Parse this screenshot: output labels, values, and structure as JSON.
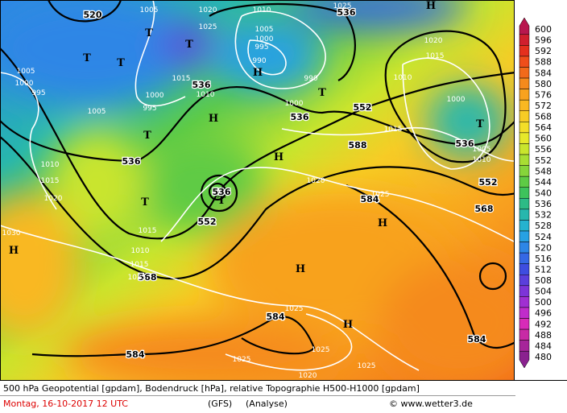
{
  "map": {
    "geopotential_labels": [
      "520",
      "536",
      "536",
      "552",
      "536",
      "536",
      "536",
      "552",
      "568",
      "584",
      "584",
      "588",
      "584",
      "568",
      "552",
      "536",
      "584"
    ],
    "pressure_labels": [
      "1005",
      "1020",
      "1025",
      "1010",
      "1005",
      "1000",
      "995",
      "990",
      "1015",
      "1000",
      "995",
      "1010",
      "1005",
      "1000",
      "1005",
      "995",
      "1010",
      "1015",
      "1020",
      "1030",
      "1015",
      "1010",
      "1015",
      "1025",
      "1025",
      "1025",
      "1025",
      "1025",
      "1020",
      "1000",
      "990",
      "1010",
      "1000",
      "1015",
      "1020",
      "1025",
      "1015",
      "1005",
      "1010",
      "1020",
      "1025"
    ],
    "centers": [
      "T",
      "T",
      "T",
      "H",
      "T",
      "T",
      "T",
      "T",
      "T",
      "T",
      "H",
      "H",
      "H",
      "H",
      "H",
      "H",
      "H"
    ]
  },
  "colorbar": {
    "levels": [
      600,
      596,
      592,
      588,
      584,
      580,
      576,
      572,
      568,
      564,
      560,
      556,
      552,
      548,
      544,
      540,
      536,
      532,
      528,
      524,
      520,
      516,
      512,
      508,
      504,
      500,
      496,
      492,
      488,
      484,
      480
    ],
    "colors": [
      "#b8174e",
      "#d01f2e",
      "#e4301d",
      "#ef4e1a",
      "#f26a1a",
      "#f58a1c",
      "#f8a21f",
      "#f9b822",
      "#f7cc25",
      "#f3de28",
      "#e6e82a",
      "#c9e52d",
      "#a8de33",
      "#86d53a",
      "#5ecb45",
      "#3ec35c",
      "#2dbb86",
      "#27b7ad",
      "#25b2cf",
      "#27a1e3",
      "#2d86e6",
      "#3568e5",
      "#3e4de0",
      "#5b3fdc",
      "#7d34d8",
      "#a02fd2",
      "#c02ccb",
      "#d72bb8",
      "#c82aa5",
      "#a6259a",
      "#8a218f"
    ]
  },
  "footer": {
    "description": "500 hPa Geopotential [gpdam], Bodendruck [hPa], relative Topographie H500-H1000 [gpdam]",
    "date": "Montag, 16-10-2017  12 UTC",
    "model": "(GFS)",
    "run": "(Analyse)",
    "credit": "© www.wetter3.de"
  }
}
